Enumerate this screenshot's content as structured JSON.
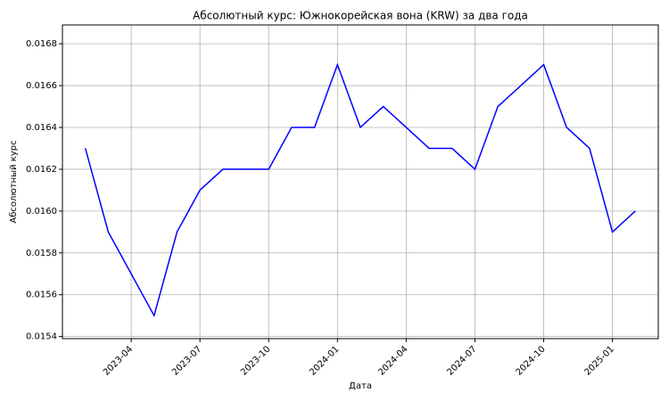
{
  "chart_data": {
    "type": "line",
    "title": "Абсолютный курс: Южнокорейская вона (KRW) за два года",
    "xlabel": "Дата",
    "ylabel": "Абсолютный курс",
    "x": [
      "2023-02",
      "2023-03",
      "2023-04",
      "2023-05",
      "2023-06",
      "2023-07",
      "2023-08",
      "2023-09",
      "2023-10",
      "2023-11",
      "2023-12",
      "2024-01",
      "2024-02",
      "2024-03",
      "2024-04",
      "2024-05",
      "2024-06",
      "2024-07",
      "2024-08",
      "2024-09",
      "2024-10",
      "2024-11",
      "2024-12",
      "2025-01",
      "2025-02"
    ],
    "series": [
      {
        "name": "KRW",
        "color": "#0000ff",
        "values": [
          0.0163,
          0.0159,
          0.0157,
          0.0155,
          0.0159,
          0.0161,
          0.0162,
          0.0162,
          0.0162,
          0.0164,
          0.0164,
          0.0167,
          0.0164,
          0.0165,
          0.0164,
          0.0163,
          0.0163,
          0.0162,
          0.0165,
          0.0166,
          0.0167,
          0.0164,
          0.0163,
          0.0159,
          0.016
        ]
      }
    ],
    "xlim": [
      "2023-01",
      "2025-03"
    ],
    "xticks": [
      "2023-04",
      "2023-07",
      "2023-10",
      "2024-01",
      "2024-04",
      "2024-07",
      "2024-10",
      "2025-01"
    ],
    "ylim": [
      0.01539,
      0.01689
    ],
    "yticks": [
      0.0154,
      0.0156,
      0.0158,
      {
        "value": 0.016,
        "label": "0.0160"
      },
      0.0162,
      0.0164,
      0.0166,
      0.0168
    ],
    "grid": true,
    "axis_label_color": "#0000ff"
  }
}
